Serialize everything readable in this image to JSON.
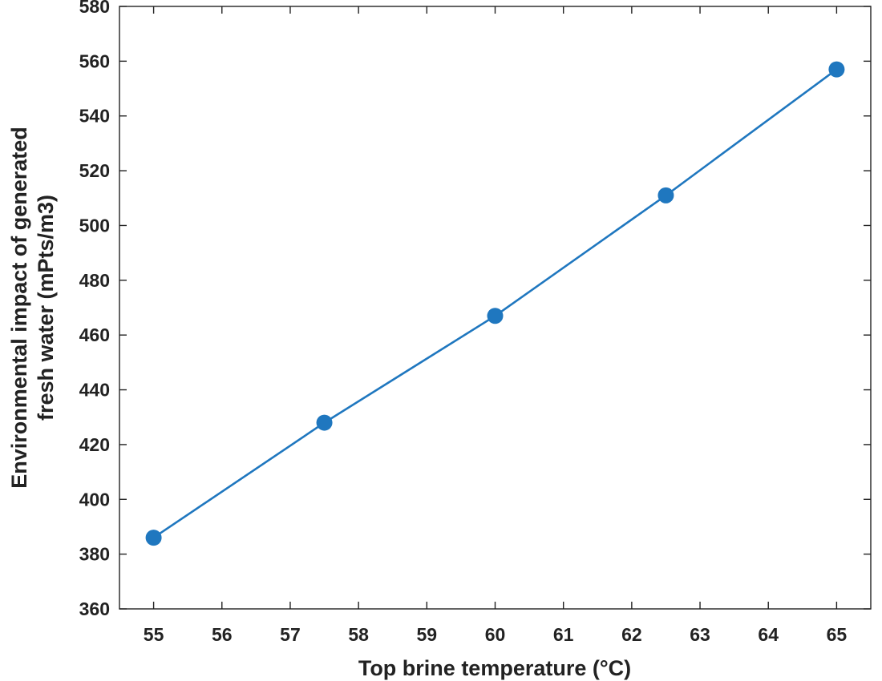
{
  "chart_data": {
    "type": "line",
    "title": "",
    "xlabel": "Top brine temperature (°C)",
    "ylabel_lines": [
      "Environmental impact of generated",
      "fresh water (mPts/m3)"
    ],
    "xlim": [
      54.5,
      65.5
    ],
    "ylim": [
      360,
      580
    ],
    "xticks": [
      55,
      56,
      57,
      58,
      59,
      60,
      61,
      62,
      63,
      64,
      65
    ],
    "yticks": [
      360,
      380,
      400,
      420,
      440,
      460,
      480,
      500,
      520,
      540,
      560,
      580
    ],
    "grid": false,
    "series": [
      {
        "x": [
          55,
          57.5,
          60,
          62.5,
          65
        ],
        "y": [
          386,
          428,
          467,
          511,
          557
        ],
        "color": "#1f77bf",
        "marker": "circle"
      }
    ]
  }
}
